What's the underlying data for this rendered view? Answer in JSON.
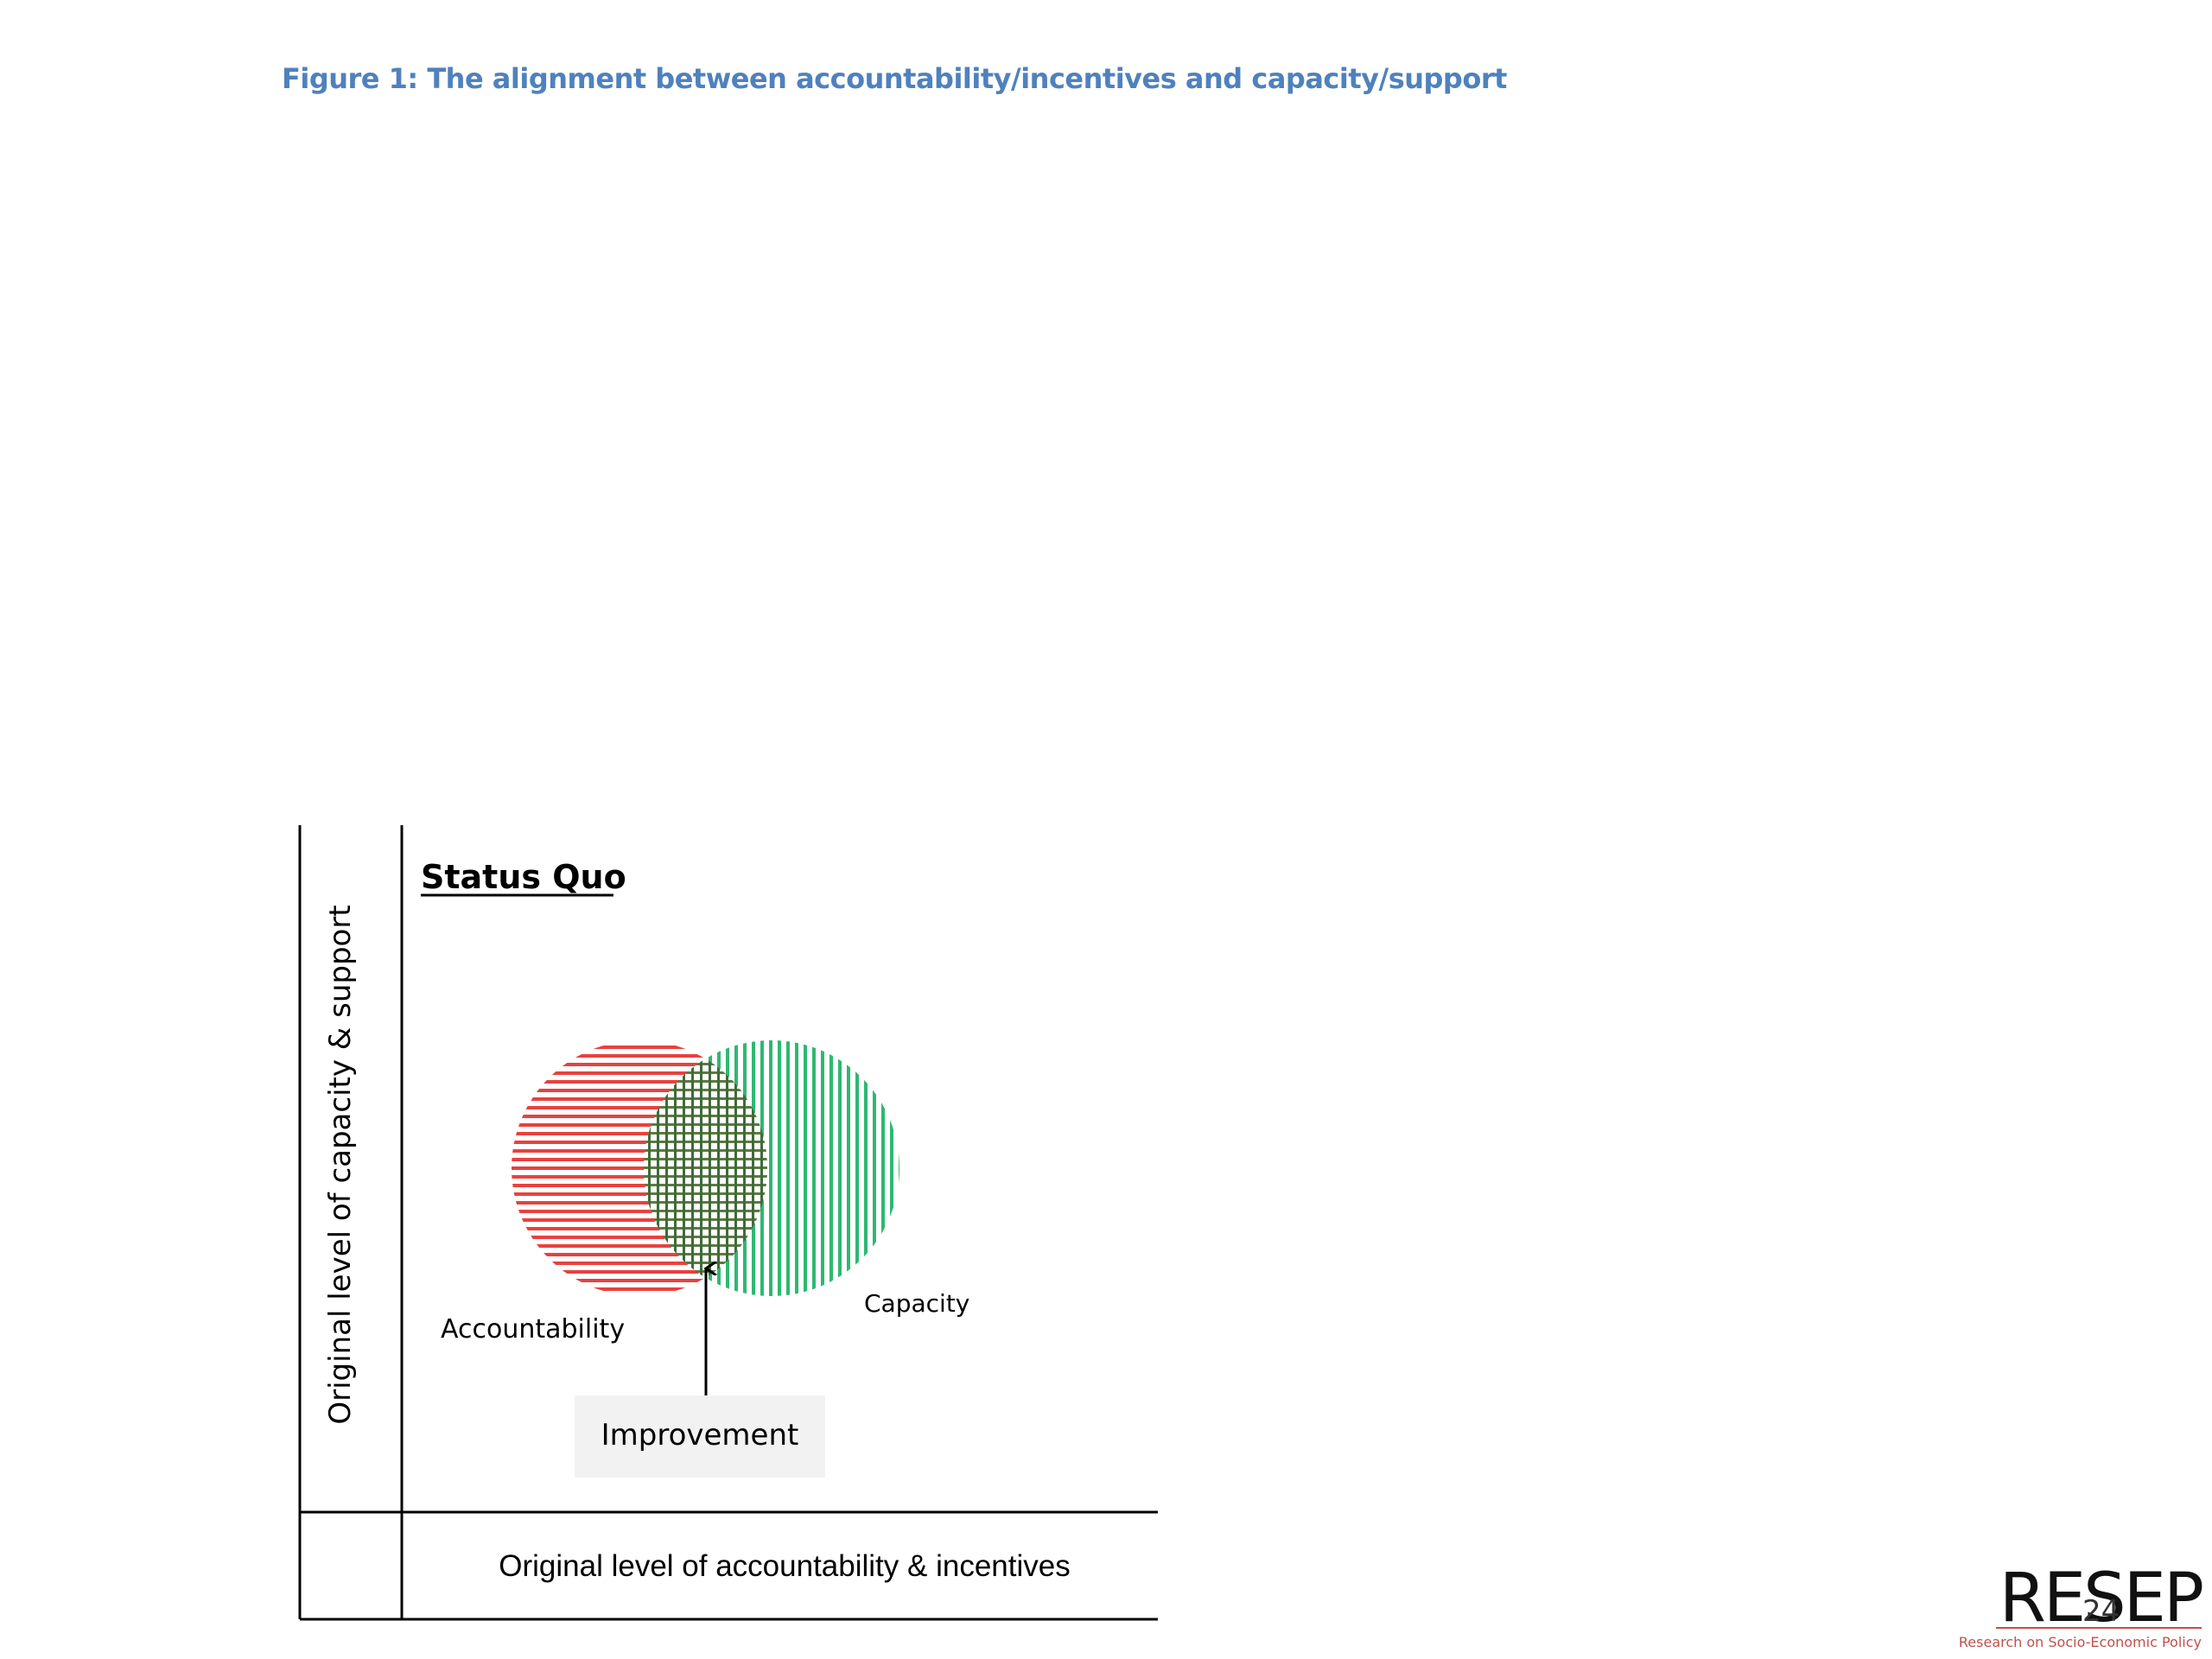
{
  "caption": "Figure 1: The alignment between accountability/incentives  and capacity/support",
  "diagram": {
    "title": "Status Quo",
    "y_axis_label": "Original level of capacity & support",
    "x_axis_label": "Original level of accountability & incentives",
    "circles": [
      {
        "label": "Accountability",
        "color": "#e8413f",
        "hatch": "horizontal"
      },
      {
        "label": "Capacity",
        "color": "#2eb872",
        "hatch": "vertical"
      }
    ],
    "overlap_label": "Improvement",
    "overlap_color": "#4a6e3a",
    "box_fill": "#f2f2f2"
  },
  "logo": {
    "mark": "RESEP",
    "tagline": "Research on Socio-Economic Policy",
    "page_number": "24",
    "accent_color": "#c0504d"
  }
}
